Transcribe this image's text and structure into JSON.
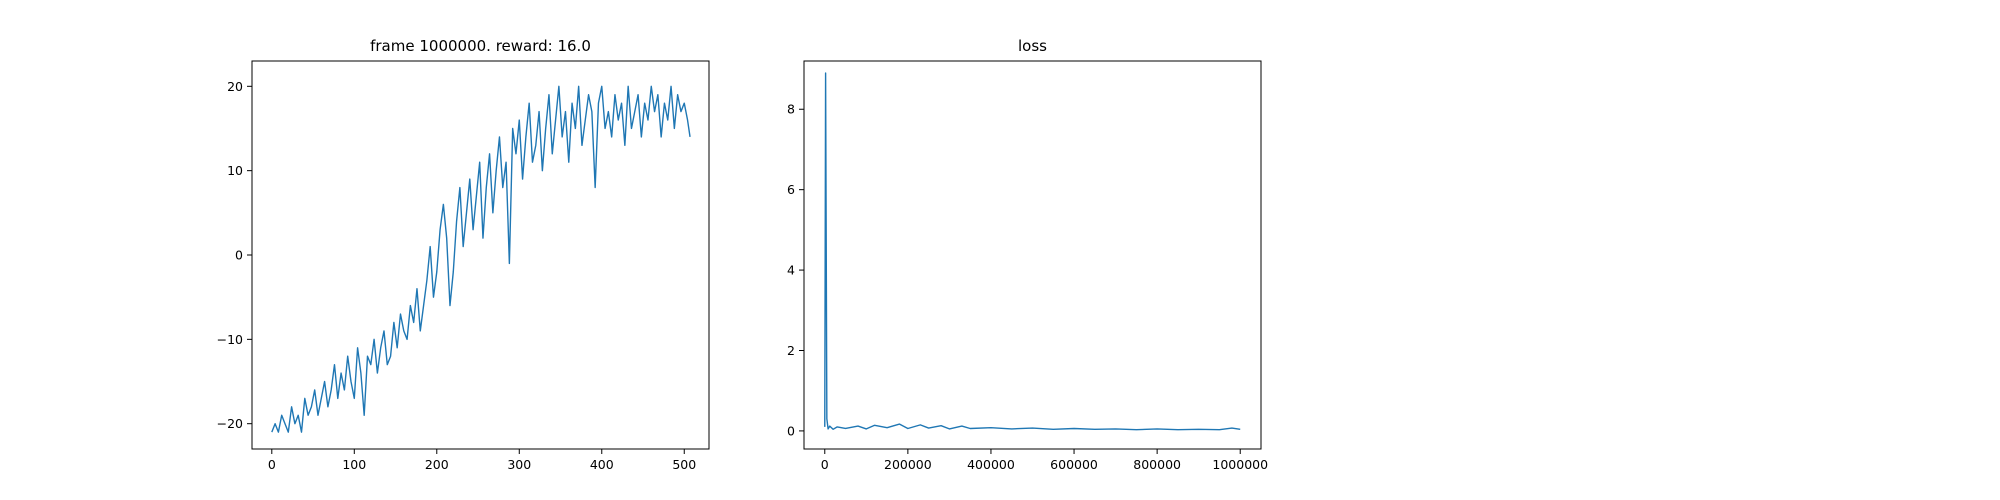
{
  "chart_data": [
    {
      "type": "line",
      "title": "frame 1000000. reward: 16.0",
      "xlabel": "",
      "ylabel": "",
      "xlim": [
        -24,
        530
      ],
      "ylim": [
        -23,
        23
      ],
      "xticks": [
        0,
        100,
        200,
        300,
        400,
        500
      ],
      "xtick_labels": [
        "0",
        "100",
        "200",
        "300",
        "400",
        "500"
      ],
      "yticks": [
        -20,
        -10,
        0,
        10,
        20
      ],
      "ytick_labels": [
        "−20",
        "−10",
        "0",
        "10",
        "20"
      ],
      "grid": false,
      "color": "#1f77b4",
      "series": [
        {
          "x": [
            0,
            4,
            8,
            12,
            16,
            20,
            24,
            28,
            32,
            36,
            40,
            44,
            48,
            52,
            56,
            60,
            64,
            68,
            72,
            76,
            80,
            84,
            88,
            92,
            96,
            100,
            104,
            108,
            112,
            116,
            120,
            124,
            128,
            132,
            136,
            140,
            144,
            148,
            152,
            156,
            160,
            164,
            168,
            172,
            176,
            180,
            184,
            188,
            192,
            196,
            200,
            204,
            208,
            212,
            216,
            220,
            224,
            228,
            232,
            236,
            240,
            244,
            248,
            252,
            256,
            260,
            264,
            268,
            272,
            276,
            280,
            284,
            288,
            292,
            296,
            300,
            304,
            308,
            312,
            316,
            320,
            324,
            328,
            332,
            336,
            340,
            344,
            348,
            352,
            356,
            360,
            364,
            368,
            372,
            376,
            380,
            384,
            388,
            392,
            396,
            400,
            404,
            408,
            412,
            416,
            420,
            424,
            428,
            432,
            436,
            440,
            444,
            448,
            452,
            456,
            460,
            464,
            468,
            472,
            476,
            480,
            484,
            488,
            492,
            496,
            500,
            504,
            507
          ],
          "y": [
            -21,
            -20,
            -21,
            -19,
            -20,
            -21,
            -18,
            -20,
            -19,
            -21,
            -17,
            -19,
            -18,
            -16,
            -19,
            -17,
            -15,
            -18,
            -16,
            -13,
            -17,
            -14,
            -16,
            -12,
            -15,
            -17,
            -11,
            -14,
            -19,
            -12,
            -13,
            -10,
            -14,
            -11,
            -9,
            -13,
            -12,
            -8,
            -11,
            -7,
            -9,
            -10,
            -6,
            -8,
            -4,
            -9,
            -6,
            -3,
            1,
            -5,
            -2,
            3,
            6,
            2,
            -6,
            -2,
            4,
            8,
            1,
            5,
            9,
            3,
            7,
            11,
            2,
            8,
            12,
            5,
            10,
            14,
            8,
            11,
            -1,
            15,
            12,
            16,
            9,
            14,
            18,
            11,
            13,
            17,
            10,
            15,
            19,
            12,
            16,
            20,
            14,
            17,
            11,
            18,
            15,
            20,
            13,
            16,
            19,
            17,
            8,
            18,
            20,
            15,
            17,
            14,
            19,
            16,
            18,
            13,
            20,
            15,
            17,
            19,
            14,
            18,
            16,
            20,
            17,
            19,
            14,
            18,
            16,
            20,
            15,
            19,
            17,
            18,
            16,
            14
          ]
        }
      ]
    },
    {
      "type": "line",
      "title": "loss",
      "xlabel": "",
      "ylabel": "",
      "xlim": [
        -50000,
        1050000
      ],
      "ylim": [
        -0.45,
        9.2
      ],
      "xticks": [
        0,
        200000,
        400000,
        600000,
        800000,
        1000000
      ],
      "xtick_labels": [
        "0",
        "200000",
        "400000",
        "600000",
        "800000",
        "1000000"
      ],
      "yticks": [
        0,
        2,
        4,
        6,
        8
      ],
      "ytick_labels": [
        "0",
        "2",
        "4",
        "6",
        "8"
      ],
      "grid": false,
      "color": "#1f77b4",
      "series": [
        {
          "x": [
            0,
            2000,
            5000,
            8000,
            12000,
            20000,
            30000,
            50000,
            80000,
            100000,
            120000,
            150000,
            180000,
            200000,
            230000,
            250000,
            280000,
            300000,
            330000,
            350000,
            400000,
            450000,
            500000,
            550000,
            600000,
            650000,
            700000,
            750000,
            800000,
            850000,
            900000,
            950000,
            980000,
            1000000
          ],
          "y": [
            0.1,
            8.9,
            0.3,
            0.05,
            0.12,
            0.04,
            0.1,
            0.06,
            0.12,
            0.05,
            0.14,
            0.08,
            0.17,
            0.06,
            0.15,
            0.07,
            0.13,
            0.05,
            0.12,
            0.06,
            0.08,
            0.05,
            0.07,
            0.04,
            0.06,
            0.04,
            0.05,
            0.03,
            0.05,
            0.03,
            0.04,
            0.03,
            0.07,
            0.04
          ]
        }
      ]
    }
  ]
}
